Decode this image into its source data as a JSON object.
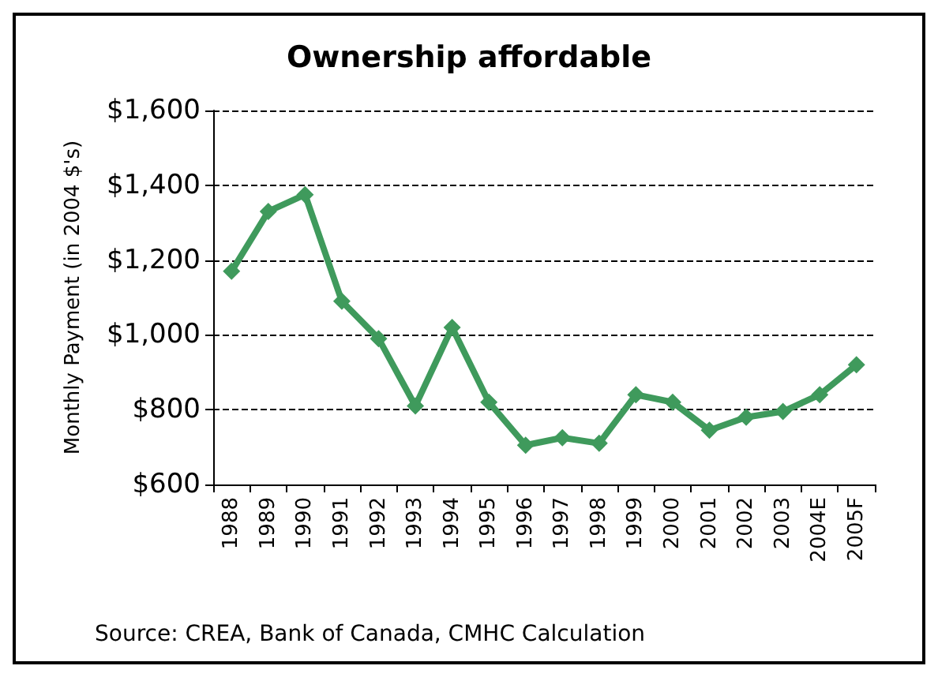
{
  "chart_data": {
    "type": "line",
    "title": "Ownership affordable",
    "ylabel": "Monthly Payment (in 2004 $'s)",
    "annotations": [
      "Source: CREA, Bank of Canada, CMHC Calculation"
    ],
    "categories": [
      "1988",
      "1989",
      "1990",
      "1991",
      "1992",
      "1993",
      "1994",
      "1995",
      "1996",
      "1997",
      "1998",
      "1999",
      "2000",
      "2001",
      "2002",
      "2003",
      "2004E",
      "2005F"
    ],
    "series": [
      {
        "color": "#3f9a5c",
        "values": [
          1170,
          1330,
          1375,
          1090,
          990,
          810,
          1020,
          820,
          705,
          725,
          710,
          840,
          820,
          745,
          780,
          795,
          840,
          920
        ]
      }
    ],
    "ylim": [
      600,
      1600
    ],
    "yticks": [
      {
        "value": 600,
        "label": "$600"
      },
      {
        "value": 800,
        "label": "$800"
      },
      {
        "value": 1000,
        "label": "$1,000"
      },
      {
        "value": 1200,
        "label": "$1,200"
      },
      {
        "value": 1400,
        "label": "$1,400"
      },
      {
        "value": 1600,
        "label": "$1,600"
      }
    ],
    "grid": "y",
    "marker": "diamond",
    "line_style": "solid"
  }
}
